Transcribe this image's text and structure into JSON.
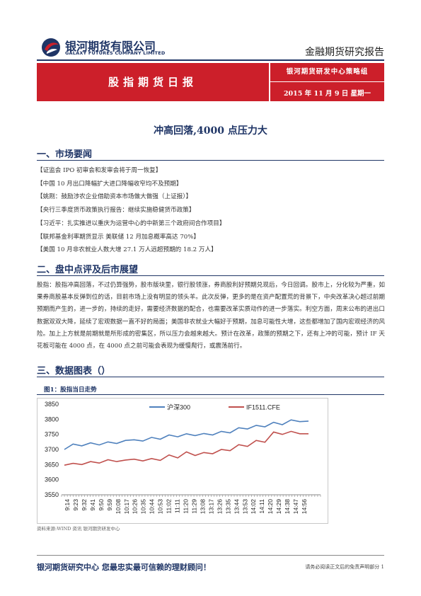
{
  "header": {
    "company_cn": "银河期货有限公司",
    "company_en": "GALAXY FUTURES COMPANY LIMITED",
    "report_type": "金融期货研究报告",
    "report_name": "股指期货日报",
    "org": "银河期货研发中心策略组",
    "date": "2015 年 11 月 9 日   星期一"
  },
  "title": "冲高回落,4000 点压力大",
  "section1": {
    "heading": "一、市场要闻",
    "items": [
      "【证监会 IPO 初审会和发审会将于周一恢复】",
      "【中国 10 月出口降幅扩大进口降幅收窄均不及预期】",
      "【姚刚：鼓励涉农企业借助资本市场做大做强（上证报）】",
      "【央行三季度货币政策执行报告：继续实施稳健货币政策】",
      "【习近平：扎实推进以重庆为运营中心的中新第三个政府间合作项目】",
      "【联邦基金利率期货显示 美联储 12 月加息概率高达 70%】",
      "【美国 10 月非农就业人数大增 27.1 万人远超预期的 18.2 万人】"
    ]
  },
  "section2": {
    "heading": "二、盘中点评及后市展望",
    "paragraph": "股指：股指冲高回落，不过仍算强势，股市版块里，银行股领涨，券商股利好预期兑现后，今日回调。股市上，分化较为严重，如果券商股基本反弹到位的话，目前市场上没有明显的领头羊。此次反弹，更多的是在资产配置荒的背景下，中央改革决心超过前期预期而产生的，进一步的，持续的走好，需要经济数据的配合，也需要改革实质动作的进一步落实。利空方面，周末公布的进出口数据双双大降，延续了宏观数据一直不好的局面；美国非农就业大幅好于预期，加息可能性大增，这些都增加了国内宏观经济的风险。加上上方就是前期就是所形成的密集区，所以压力会越来越大。预计在改革，政策的预期之下，还有上冲的可能，预计 IF 天花板可能在 4000 点，在 4000 点之前可能会表现为缓慢爬行，或震荡前行。"
  },
  "section3": {
    "heading": "三、数据图表（）",
    "figure_title": "图1：股指当日走势",
    "source": "资料来源:WIND 资讯   银河期货研发中心"
  },
  "chart_data": {
    "type": "line",
    "ylim": [
      3550,
      3850
    ],
    "yticks": [
      3550,
      3600,
      3650,
      3700,
      3750,
      3800,
      3850
    ],
    "x_labels": [
      "9:14",
      "9:23",
      "9:32",
      "9:41",
      "9:50",
      "9:59",
      "10:08",
      "10:17",
      "10:26",
      "10:35",
      "10:44",
      "10:53",
      "11:02",
      "11:11",
      "11:20",
      "11:29",
      "13:08",
      "13:17",
      "13:26",
      "13:35",
      "13:44",
      "13:53",
      "14:02",
      "14:11",
      "14:20",
      "14:29",
      "14:38",
      "14:47",
      "14:56"
    ],
    "colors": {
      "s0": "#4f81bd",
      "s1": "#c0504d"
    },
    "series": [
      {
        "name": "沪深300",
        "values": [
          3700,
          3718,
          3712,
          3722,
          3715,
          3725,
          3720,
          3730,
          3732,
          3728,
          3740,
          3734,
          3748,
          3742,
          3752,
          3746,
          3753,
          3748,
          3760,
          3755,
          3772,
          3768,
          3780,
          3775,
          3790,
          3782,
          3798,
          3792,
          3794
        ]
      },
      {
        "name": "IF1511.CFE",
        "values": [
          3648,
          3654,
          3650,
          3660,
          3655,
          3666,
          3660,
          3665,
          3668,
          3662,
          3670,
          3664,
          3682,
          3672,
          3692,
          3680,
          3690,
          3686,
          3700,
          3696,
          3716,
          3710,
          3730,
          3724,
          3758,
          3750,
          3760,
          3752,
          3752
        ]
      }
    ]
  },
  "footer": {
    "slogan": "银河期货研究中心   您最忠实最可信赖的理财顾问！",
    "disclaimer": "请务必阅读正文后的免责声明部分 1"
  }
}
